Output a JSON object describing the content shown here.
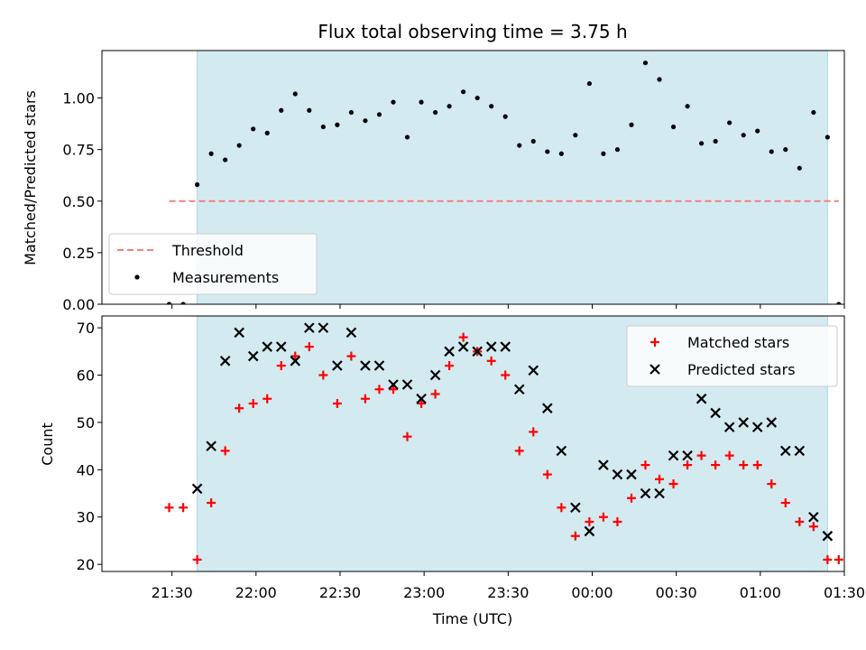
{
  "colors": {
    "shade": "#d4eaf1",
    "shade_edge": "#add8e6",
    "threshold": "#f08080",
    "measurement": "#000000",
    "matched": "#ff0000",
    "predicted": "#000000"
  },
  "chart_data": [
    {
      "type": "scatter",
      "title": "Flux total observing time = 3.75 h",
      "xlabel": "",
      "ylabel": "Matched/Predicted stars",
      "ylim": [
        0,
        1.23
      ],
      "yticks": [
        "0.00",
        "0.25",
        "0.50",
        "0.75",
        "1.00"
      ],
      "legend_position": "lower-left",
      "observing_window": {
        "start": "21:39",
        "end": "01:24"
      },
      "threshold": {
        "name": "Threshold",
        "value": 0.5,
        "x_start": "21:29",
        "x_end": "01:28"
      },
      "series": [
        {
          "name": "Measurements",
          "x": [
            "21:29",
            "21:34",
            "21:39",
            "21:44",
            "21:49",
            "21:54",
            "21:59",
            "22:04",
            "22:09",
            "22:14",
            "22:19",
            "22:24",
            "22:29",
            "22:34",
            "22:39",
            "22:44",
            "22:49",
            "22:54",
            "22:59",
            "23:04",
            "23:09",
            "23:14",
            "23:19",
            "23:24",
            "23:29",
            "23:34",
            "23:39",
            "23:44",
            "23:49",
            "23:54",
            "23:59",
            "00:04",
            "00:09",
            "00:14",
            "00:19",
            "00:24",
            "00:29",
            "00:34",
            "00:39",
            "00:44",
            "00:49",
            "00:54",
            "00:59",
            "01:04",
            "01:09",
            "01:14",
            "01:19",
            "01:24",
            "01:28"
          ],
          "values": [
            0.0,
            0.0,
            0.58,
            0.73,
            0.7,
            0.77,
            0.85,
            0.83,
            0.94,
            1.02,
            0.94,
            0.86,
            0.87,
            0.93,
            0.89,
            0.92,
            0.98,
            0.81,
            0.98,
            0.93,
            0.96,
            1.03,
            1.0,
            0.96,
            0.91,
            0.77,
            0.79,
            0.74,
            0.73,
            0.82,
            1.07,
            0.73,
            0.75,
            0.87,
            1.17,
            1.09,
            0.86,
            0.96,
            0.78,
            0.79,
            0.88,
            0.82,
            0.84,
            0.74,
            0.75,
            0.66,
            0.93,
            0.81,
            0.0
          ]
        }
      ]
    },
    {
      "type": "scatter",
      "title": "",
      "xlabel": "Time (UTC)",
      "ylabel": "Count",
      "ylim": [
        18.5,
        72.5
      ],
      "yticks": [
        "20",
        "30",
        "40",
        "50",
        "60",
        "70"
      ],
      "xticks": [
        "21:30",
        "22:00",
        "22:30",
        "23:00",
        "23:30",
        "00:00",
        "00:30",
        "01:00",
        "01:30"
      ],
      "legend_position": "top-right",
      "observing_window": {
        "start": "21:39",
        "end": "01:24"
      },
      "series": [
        {
          "name": "Matched stars",
          "x": [
            "21:29",
            "21:34",
            "21:39",
            "21:44",
            "21:49",
            "21:54",
            "21:59",
            "22:04",
            "22:09",
            "22:14",
            "22:19",
            "22:24",
            "22:29",
            "22:34",
            "22:39",
            "22:44",
            "22:49",
            "22:54",
            "22:59",
            "23:04",
            "23:09",
            "23:14",
            "23:19",
            "23:24",
            "23:29",
            "23:34",
            "23:39",
            "23:44",
            "23:49",
            "23:54",
            "23:59",
            "00:04",
            "00:09",
            "00:14",
            "00:19",
            "00:24",
            "00:29",
            "00:34",
            "00:39",
            "00:44",
            "00:49",
            "00:54",
            "00:59",
            "01:04",
            "01:09",
            "01:14",
            "01:19",
            "01:24",
            "01:28"
          ],
          "values": [
            32,
            32,
            21,
            33,
            44,
            53,
            54,
            55,
            62,
            64,
            66,
            60,
            54,
            64,
            55,
            57,
            57,
            47,
            54,
            56,
            62,
            68,
            65,
            63,
            60,
            44,
            48,
            39,
            32,
            26,
            29,
            30,
            29,
            34,
            41,
            38,
            37,
            41,
            43,
            41,
            43,
            41,
            41,
            37,
            33,
            29,
            28,
            21,
            21
          ]
        },
        {
          "name": "Predicted stars",
          "x": [
            "21:39",
            "21:44",
            "21:49",
            "21:54",
            "21:59",
            "22:04",
            "22:09",
            "22:14",
            "22:19",
            "22:24",
            "22:29",
            "22:34",
            "22:39",
            "22:44",
            "22:49",
            "22:54",
            "22:59",
            "23:04",
            "23:09",
            "23:14",
            "23:19",
            "23:24",
            "23:29",
            "23:34",
            "23:39",
            "23:44",
            "23:49",
            "23:54",
            "23:59",
            "00:04",
            "00:09",
            "00:14",
            "00:19",
            "00:24",
            "00:29",
            "00:34",
            "00:39",
            "00:44",
            "00:49",
            "00:54",
            "00:59",
            "01:04",
            "01:09",
            "01:14",
            "01:19",
            "01:24"
          ],
          "values": [
            36,
            45,
            63,
            69,
            64,
            66,
            66,
            63,
            70,
            70,
            62,
            69,
            62,
            62,
            58,
            58,
            55,
            60,
            65,
            66,
            65,
            66,
            66,
            57,
            61,
            53,
            44,
            32,
            27,
            41,
            39,
            39,
            35,
            35,
            43,
            43,
            55,
            52,
            49,
            50,
            49,
            50,
            44,
            44,
            30,
            26
          ]
        }
      ]
    }
  ]
}
